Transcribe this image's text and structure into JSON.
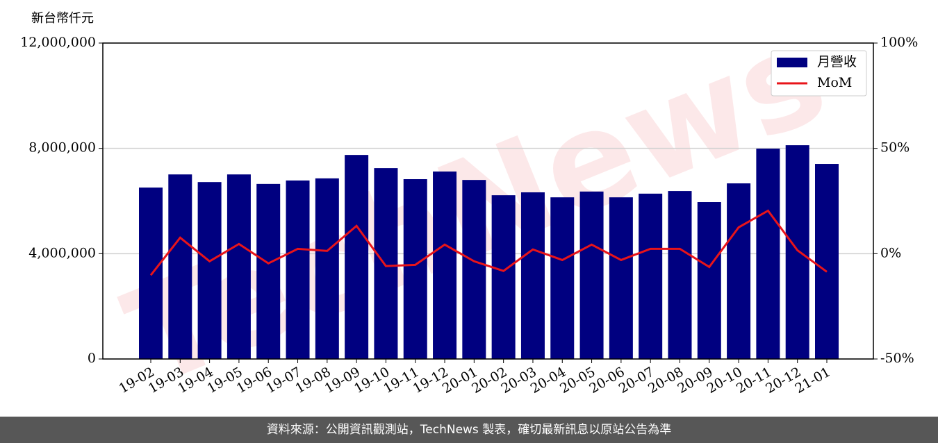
{
  "chart_data": {
    "type": "bar",
    "y_label": "新台幣仟元",
    "watermark": "TechNews",
    "categories": [
      "19-02",
      "19-03",
      "19-04",
      "19-05",
      "19-06",
      "19-07",
      "19-08",
      "19-09",
      "19-10",
      "19-11",
      "19-12",
      "20-01",
      "20-02",
      "20-03",
      "20-04",
      "20-05",
      "20-06",
      "20-07",
      "20-08",
      "20-09",
      "20-10",
      "20-11",
      "20-12",
      "21-01"
    ],
    "series": [
      {
        "name": "月營收",
        "type": "bar",
        "color": "#000080",
        "values": [
          6510000,
          7010000,
          6720000,
          7010000,
          6650000,
          6780000,
          6860000,
          7750000,
          7250000,
          6830000,
          7120000,
          6800000,
          6220000,
          6330000,
          6140000,
          6360000,
          6140000,
          6280000,
          6380000,
          5960000,
          6670000,
          7990000,
          8120000,
          7410000
        ]
      },
      {
        "name": "MoM",
        "type": "line",
        "axis": "y2",
        "color": "#e8141a",
        "values": [
          -10.2,
          7.6,
          -3.6,
          4.6,
          -4.6,
          2.3,
          1.3,
          13.2,
          -5.9,
          -5.3,
          4.3,
          -3.6,
          -8.2,
          2.0,
          -3.0,
          4.3,
          -3.0,
          2.3,
          2.3,
          -6.3,
          12.5,
          20.4,
          1.6,
          -8.6
        ]
      }
    ],
    "ylim": [
      0,
      12000000
    ],
    "yticks": [
      0,
      {
        "value": 4000000,
        "label": "4,000,000"
      },
      {
        "value": 8000000,
        "label": "8,000,000"
      },
      {
        "value": 12000000,
        "label": "12,000,000"
      }
    ],
    "y2lim": [
      -50,
      100
    ],
    "y2ticks": [
      {
        "value": -50,
        "label": "-50%"
      },
      {
        "value": 0,
        "label": "0%"
      },
      {
        "value": 50,
        "label": "50%"
      },
      {
        "value": 100,
        "label": "100%"
      }
    ],
    "grid": true,
    "legend": "upper right"
  },
  "footer": {
    "text": "資料來源：公開資訊觀測站，TechNews 製表，確切最新訊息以原站公告為準"
  }
}
